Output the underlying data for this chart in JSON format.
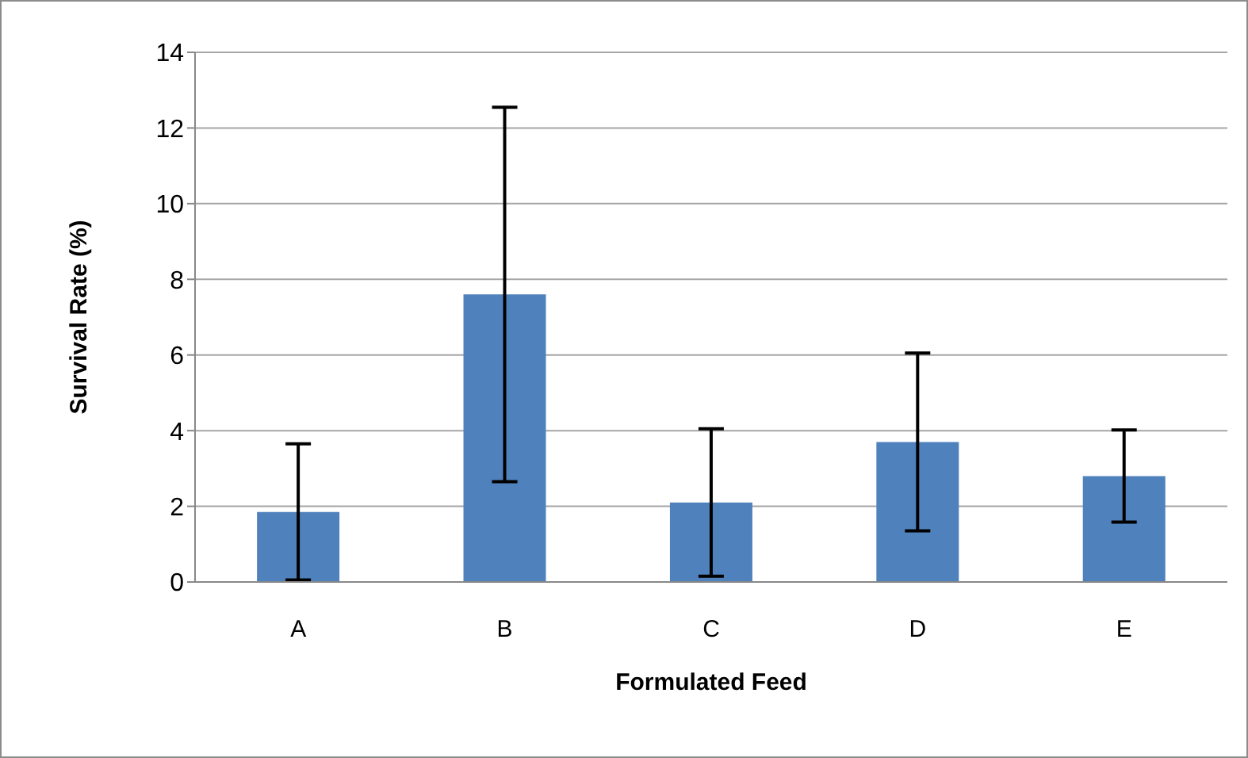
{
  "chart_data": {
    "type": "bar",
    "xlabel": "Formulated Feed",
    "ylabel": "Survival Rate (%)",
    "categories": [
      "A",
      "B",
      "C",
      "D",
      "E"
    ],
    "values": [
      1.85,
      7.6,
      2.1,
      3.7,
      2.8
    ],
    "errors": [
      1.8,
      4.95,
      1.95,
      2.35,
      1.22
    ],
    "color": "#4f81bd",
    "ylim": [
      0,
      14
    ],
    "yticks": [
      0,
      2,
      4,
      6,
      8,
      10,
      12,
      14
    ],
    "grid": "y",
    "legend": false
  }
}
